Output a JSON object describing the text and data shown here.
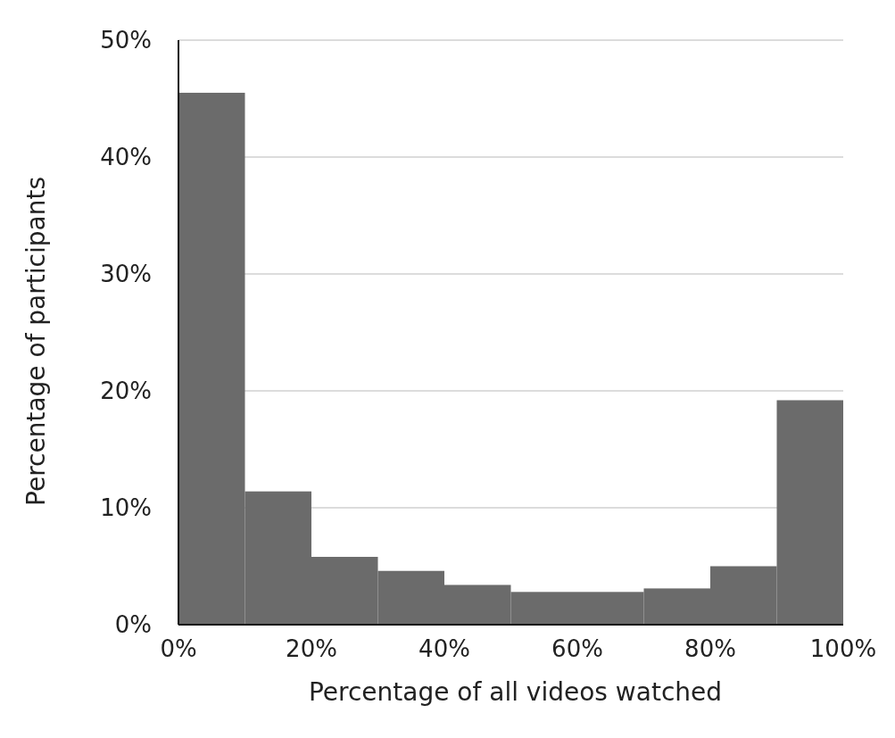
{
  "chart_data": {
    "type": "histogram",
    "xlabel": "Percentage of all videos watched",
    "ylabel": "Percentage of participants",
    "bins": [
      0,
      10,
      20,
      30,
      40,
      50,
      60,
      70,
      80,
      90,
      100
    ],
    "values": [
      45.5,
      11.4,
      5.8,
      4.6,
      3.4,
      2.8,
      2.8,
      3.1,
      5.0,
      19.2
    ],
    "color": "#6b6b6b",
    "xlim": [
      0,
      100
    ],
    "ylim": [
      0,
      50
    ],
    "xticks": [
      {
        "value": 0,
        "label": "0%"
      },
      {
        "value": 20,
        "label": "20%"
      },
      {
        "value": 40,
        "label": "40%"
      },
      {
        "value": 60,
        "label": "60%"
      },
      {
        "value": 80,
        "label": "80%"
      },
      {
        "value": 100,
        "label": "100%"
      }
    ],
    "yticks": [
      {
        "value": 0,
        "label": "0%"
      },
      {
        "value": 10,
        "label": "10%"
      },
      {
        "value": 20,
        "label": "20%"
      },
      {
        "value": 30,
        "label": "30%"
      },
      {
        "value": 40,
        "label": "40%"
      },
      {
        "value": 50,
        "label": "50%"
      }
    ],
    "grid": "y"
  }
}
